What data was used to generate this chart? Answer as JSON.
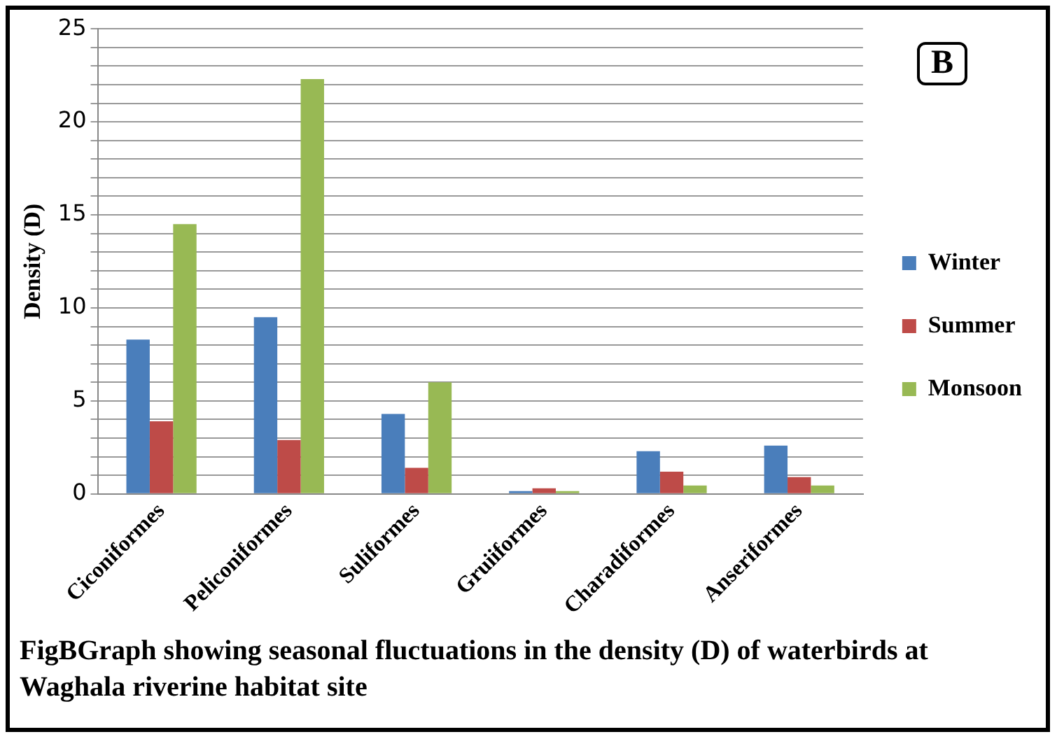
{
  "chart_data": {
    "type": "bar",
    "ylabel": "Density (D)",
    "categories": [
      "Ciconiformes",
      "Peliconiformes",
      "Suliformes",
      "Gruiiformes",
      "Charadiformes",
      "Anseriformes"
    ],
    "series": [
      {
        "name": "Winter",
        "color": "#4a7ebb",
        "values": [
          8.3,
          9.5,
          4.3,
          0.15,
          2.3,
          2.6
        ]
      },
      {
        "name": "Summer",
        "color": "#be4b48",
        "values": [
          3.9,
          2.9,
          1.4,
          0.3,
          1.2,
          0.9
        ]
      },
      {
        "name": "Monsoon",
        "color": "#98b954",
        "values": [
          14.5,
          22.3,
          6.0,
          0.15,
          0.45,
          0.45
        ]
      }
    ],
    "ylim": [
      0,
      25
    ],
    "yticks": [
      0,
      {
        "value": 1,
        "label": null
      },
      {
        "value": 2,
        "label": null
      },
      {
        "value": 3,
        "label": null
      },
      {
        "value": 4,
        "label": null
      },
      5,
      {
        "value": 6,
        "label": null
      },
      {
        "value": 7,
        "label": null
      },
      {
        "value": 8,
        "label": null
      },
      {
        "value": 9,
        "label": null
      },
      10,
      {
        "value": 11,
        "label": null
      },
      {
        "value": 12,
        "label": null
      },
      {
        "value": 13,
        "label": null
      },
      {
        "value": 14,
        "label": null
      },
      15,
      {
        "value": 16,
        "label": null
      },
      {
        "value": 17,
        "label": null
      },
      {
        "value": 18,
        "label": null
      },
      {
        "value": 19,
        "label": null
      },
      20,
      {
        "value": 21,
        "label": null
      },
      {
        "value": 22,
        "label": null
      },
      {
        "value": 23,
        "label": null
      },
      {
        "value": 24,
        "label": null
      },
      25
    ],
    "grid": "y",
    "legend": "right",
    "annotations": [
      "B",
      "FigBGraph showing seasonal fluctuations in the density (D) of waterbirds at Waghala riverine habitat site"
    ]
  }
}
